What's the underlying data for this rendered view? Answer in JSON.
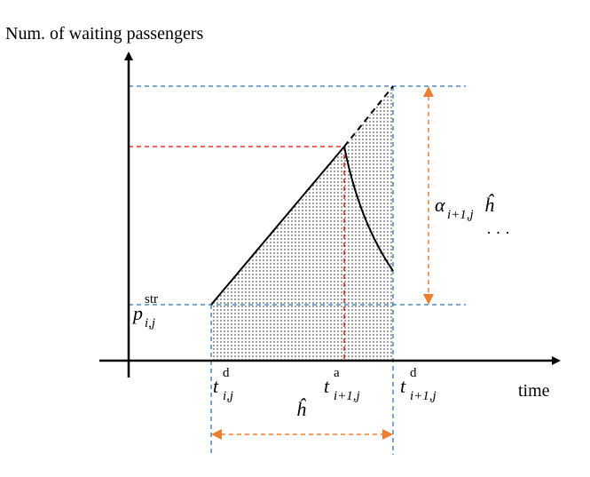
{
  "y_axis_label": "Num. of waiting passengers",
  "x_axis_label": "time",
  "p_label": {
    "base": "p",
    "sup": "str",
    "sub": "i,j"
  },
  "t_dep_label": {
    "base": "t",
    "sup": "d",
    "sub": "i,j"
  },
  "t_arr_label": {
    "base": "t",
    "sup": "a",
    "sub": "i+1,j"
  },
  "t_next_dep_label": {
    "base": "t",
    "sup": "d",
    "sub": "i+1,j"
  },
  "alpha_label": {
    "base": "α",
    "sub": "i+1,j",
    "suffix": "ĥ"
  },
  "headway_label": "ĥ",
  "ellipsis": "· · ·"
}
